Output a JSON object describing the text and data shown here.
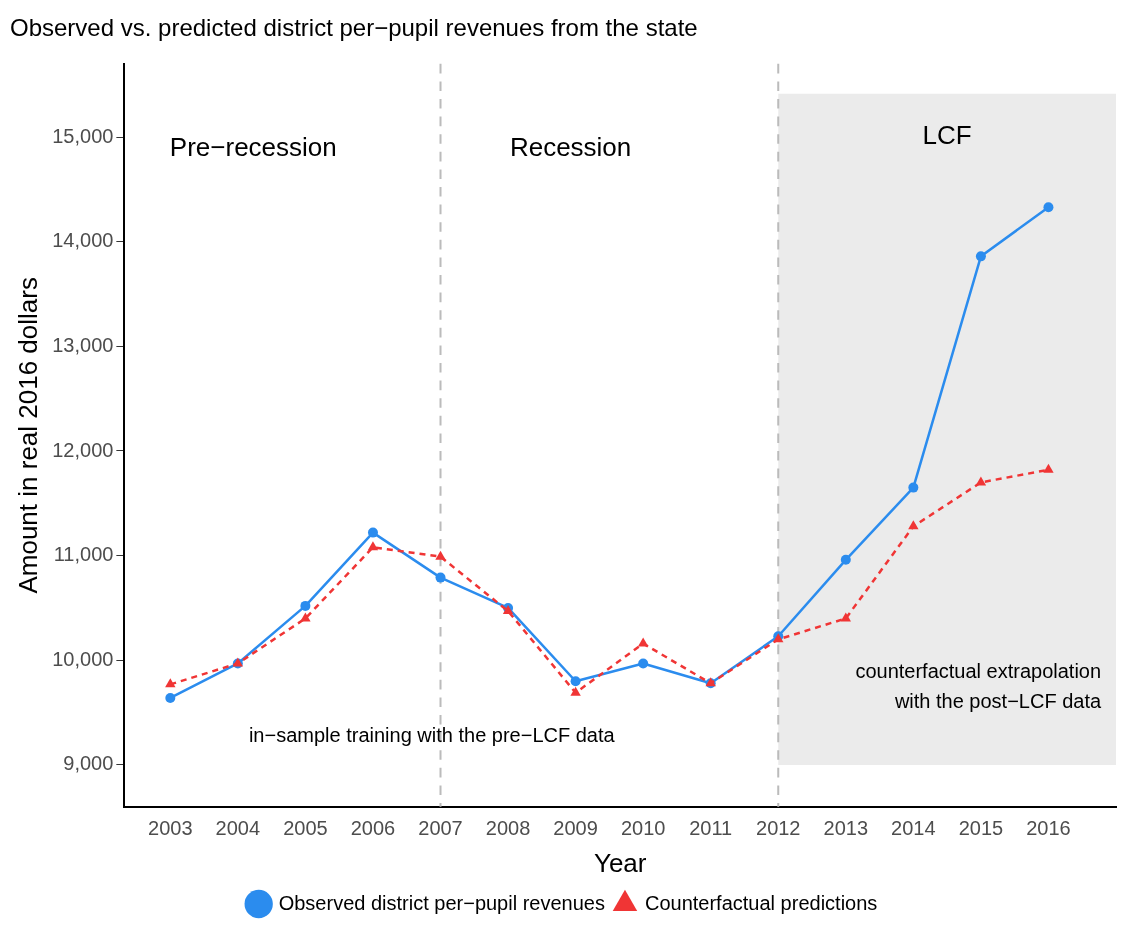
{
  "chart_data": {
    "type": "line",
    "title": "Observed vs. predicted district per−pupil revenues from the state",
    "xlabel": "Year",
    "ylabel": "Amount in real 2016 dollars",
    "x": [
      2003,
      2004,
      2005,
      2006,
      2007,
      2008,
      2009,
      2010,
      2011,
      2012,
      2013,
      2014,
      2015,
      2016
    ],
    "series": [
      {
        "name": "Observed district per−pupil revenues",
        "color": "#2b8cee",
        "marker": "circle",
        "line_style": "solid",
        "values": [
          9640,
          9970,
          10520,
          11220,
          10790,
          10500,
          9800,
          9970,
          9780,
          10230,
          10960,
          11650,
          13860,
          14330
        ]
      },
      {
        "name": "Counterfactual predictions",
        "color": "#f03535",
        "marker": "triangle",
        "line_style": "dashed",
        "values": [
          9770,
          9970,
          10400,
          11080,
          10990,
          10470,
          9690,
          10160,
          9780,
          10200,
          10400,
          11280,
          11700,
          11820
        ]
      }
    ],
    "xlim": [
      2002.32,
      2017.0
    ],
    "xticks": [
      2003,
      2004,
      2005,
      2006,
      2007,
      2008,
      2009,
      2010,
      2011,
      2012,
      2013,
      2014,
      2015,
      2016
    ],
    "ylim": [
      8600,
      15700
    ],
    "yticks": [
      {
        "value": 9000,
        "label": "9,000"
      },
      {
        "value": 10000,
        "label": "10,000"
      },
      {
        "value": 11000,
        "label": "11,000"
      },
      {
        "value": 12000,
        "label": "12,000"
      },
      {
        "value": 13000,
        "label": "13,000"
      },
      {
        "value": 14000,
        "label": "14,000"
      },
      {
        "value": 15000,
        "label": "15,000"
      }
    ],
    "grid": false,
    "legend": "bottom",
    "ref_lines": [
      {
        "axis": "x",
        "value": 2007,
        "color": "#bbbbbb",
        "line_style": "dashed"
      },
      {
        "axis": "x",
        "value": 2012,
        "color": "#bbbbbb",
        "line_style": "dashed"
      }
    ],
    "bands": [
      {
        "axis": "x",
        "from": 2012,
        "to": 2017,
        "label": "LCF",
        "color": "#ebebeb"
      }
    ],
    "annotations": [
      "Pre−recession",
      "Recession",
      "in−sample training with the pre−LCF data",
      "counterfactual extrapolation\nwith the post−LCF data"
    ]
  }
}
